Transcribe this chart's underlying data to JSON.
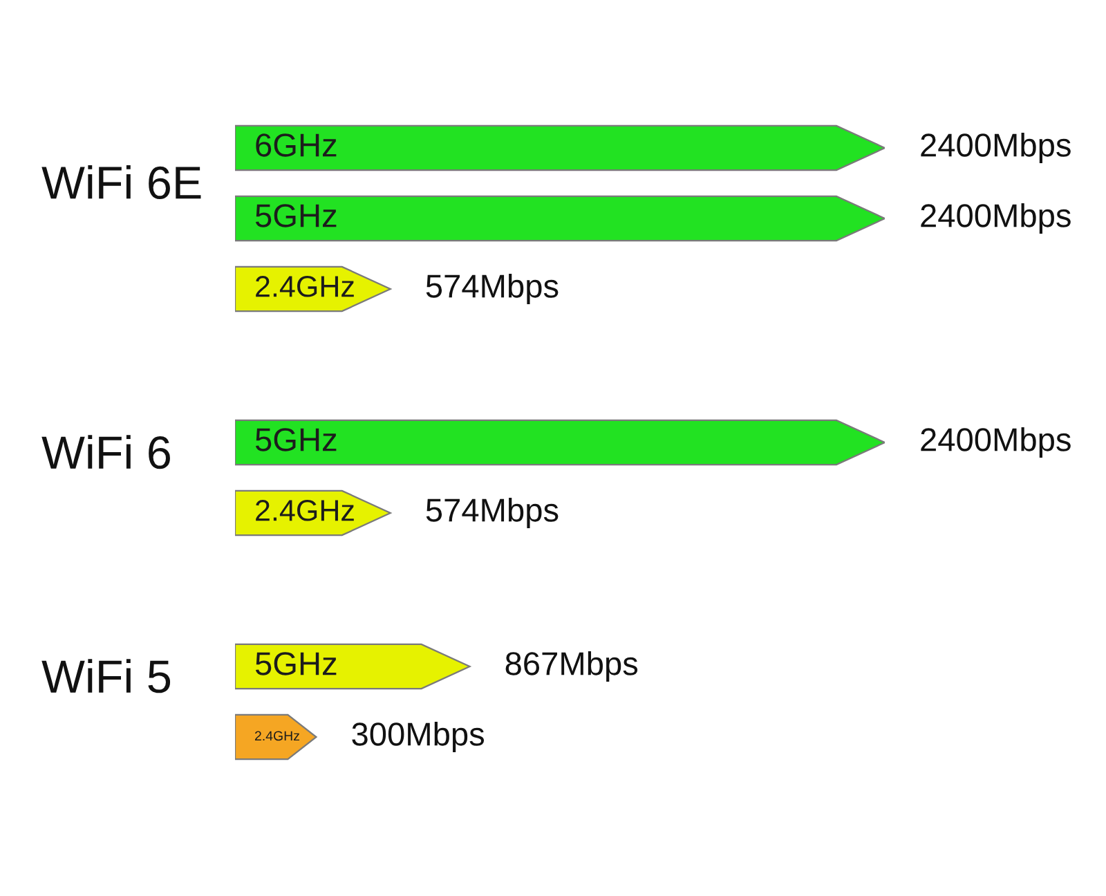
{
  "chart_data": [
    {
      "type": "bar",
      "orientation": "horizontal",
      "ylabel": "WiFi 6E",
      "categories": [
        "6GHz",
        "5GHz",
        "2.4GHz"
      ],
      "values": [
        2400,
        2400,
        574
      ],
      "colors": [
        "#22e222",
        "#22e222",
        "#e6f200"
      ],
      "value_labels": [
        "2400Mbps",
        "2400Mbps",
        "574Mbps"
      ]
    },
    {
      "type": "bar",
      "orientation": "horizontal",
      "ylabel": "WiFi 6",
      "categories": [
        "5GHz",
        "2.4GHz"
      ],
      "values": [
        2400,
        574
      ],
      "colors": [
        "#22e222",
        "#e6f200"
      ],
      "value_labels": [
        "2400Mbps",
        "574Mbps"
      ]
    },
    {
      "type": "bar",
      "orientation": "horizontal",
      "ylabel": "WiFi 5",
      "categories": [
        "5GHz",
        "2.4GHz"
      ],
      "values": [
        867,
        300
      ],
      "colors": [
        "#e6f200",
        "#f5a623"
      ],
      "value_labels": [
        "867Mbps",
        "300Mbps"
      ]
    }
  ]
}
